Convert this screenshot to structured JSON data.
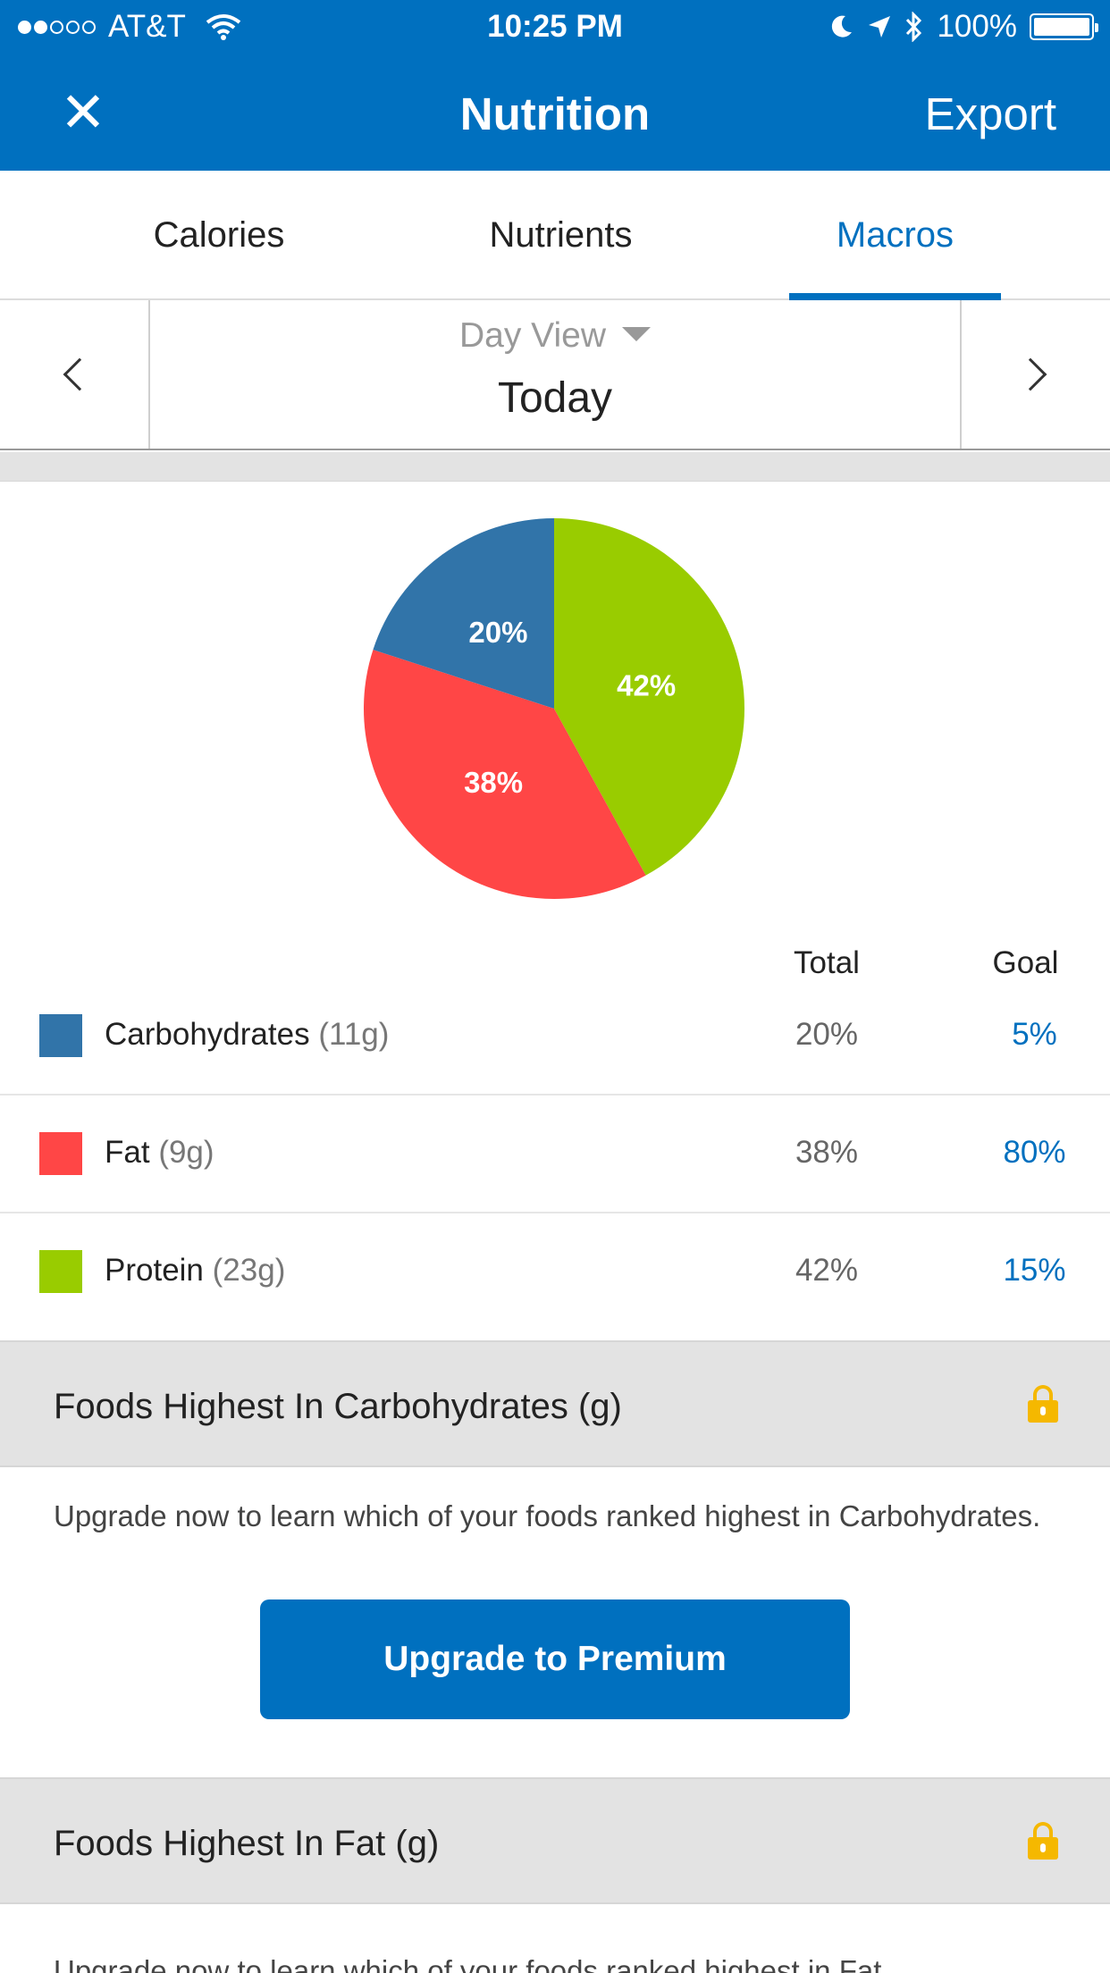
{
  "status_bar": {
    "carrier": "AT&T",
    "time": "10:25 PM",
    "battery": "100%"
  },
  "nav": {
    "title": "Nutrition",
    "export_label": "Export"
  },
  "tabs": [
    {
      "label": "Calories",
      "active": false
    },
    {
      "label": "Nutrients",
      "active": false
    },
    {
      "label": "Macros",
      "active": true
    }
  ],
  "date_selector": {
    "view_label": "Day View",
    "day_label": "Today"
  },
  "chart_data": {
    "type": "pie",
    "slices": [
      {
        "label": "Carbohydrates",
        "value": 20,
        "display": "20%",
        "color": "#3174a9"
      },
      {
        "label": "Fat",
        "value": 38,
        "display": "38%",
        "color": "#ff4646"
      },
      {
        "label": "Protein",
        "value": 42,
        "display": "42%",
        "color": "#99cc00"
      }
    ]
  },
  "table": {
    "header_total": "Total",
    "header_goal": "Goal",
    "rows": [
      {
        "name": "Carbohydrates",
        "amount": "(11g)",
        "total": "20%",
        "goal": "5%",
        "color": "#3174a9"
      },
      {
        "name": "Fat",
        "amount": "(9g)",
        "total": "38%",
        "goal": "80%",
        "color": "#ff4646"
      },
      {
        "name": "Protein",
        "amount": "(23g)",
        "total": "42%",
        "goal": "15%",
        "color": "#99cc00"
      }
    ]
  },
  "sections": [
    {
      "title": "Foods Highest In Carbohydrates (g)",
      "body": "Upgrade now to learn which of your foods ranked highest in Carbohydrates.",
      "button_label": "Upgrade to Premium"
    },
    {
      "title": "Foods Highest In Fat (g)",
      "body": "Upgrade now to learn which of your foods ranked highest in Fat."
    }
  ],
  "colors": {
    "brand_blue": "#0070bf",
    "lock_yellow": "#f5b800"
  }
}
